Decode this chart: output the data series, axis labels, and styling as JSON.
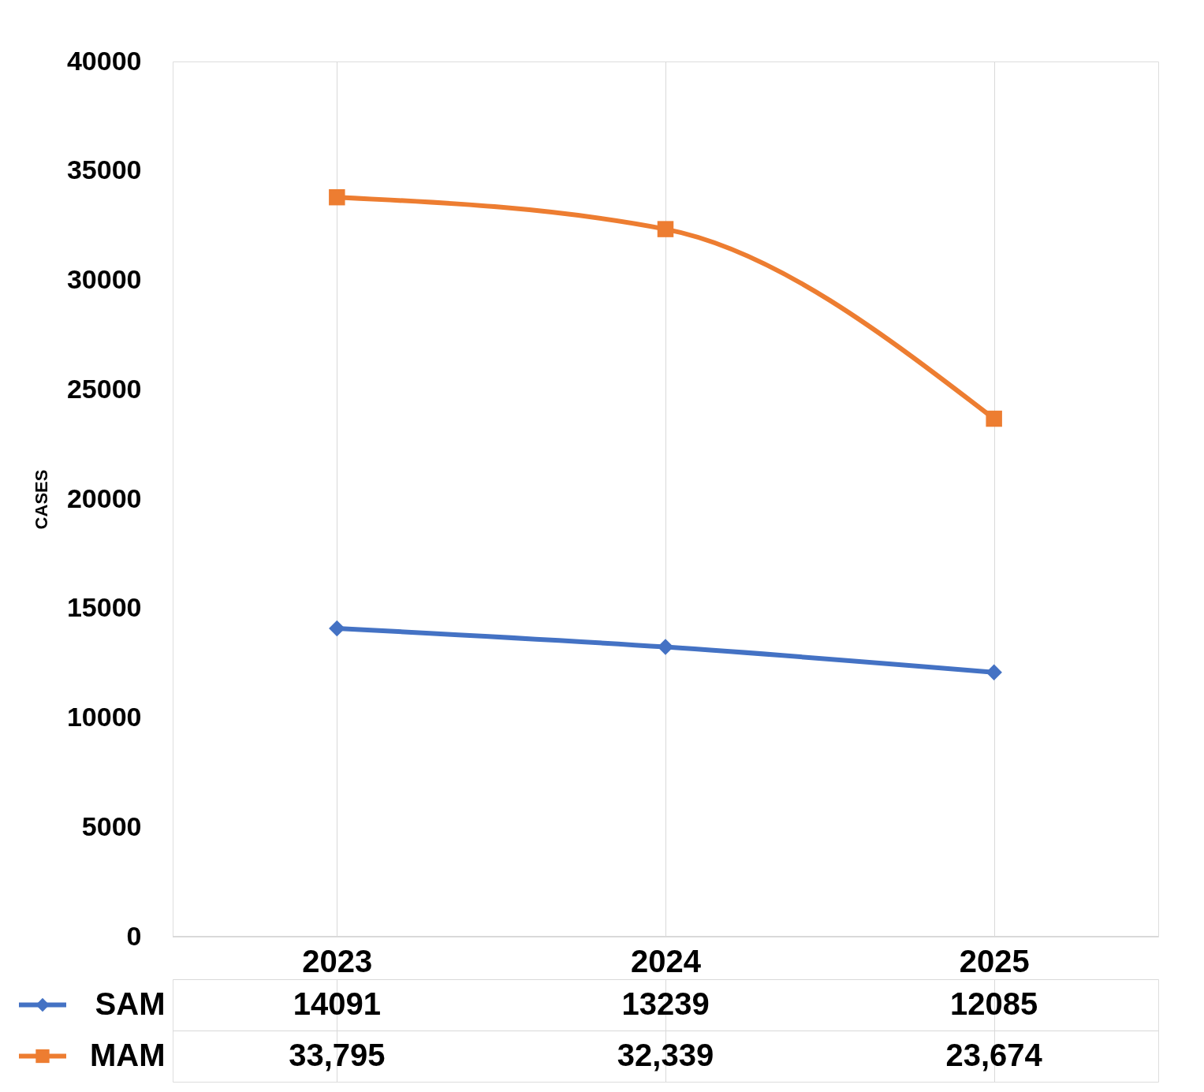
{
  "chart_data": {
    "type": "line",
    "ylabel": "CASES",
    "categories": [
      "2023",
      "2024",
      "2025"
    ],
    "series": [
      {
        "name": "SAM",
        "color": "#4472c4",
        "marker": "diamond",
        "values": [
          14091,
          13239,
          12085
        ],
        "value_labels": [
          "14091",
          "13239",
          "12085"
        ]
      },
      {
        "name": "MAM",
        "color": "#ed7d31",
        "marker": "square",
        "values": [
          33795,
          32339,
          23674
        ],
        "value_labels": [
          "33,795",
          "32,339",
          "23,674"
        ]
      }
    ],
    "ylim": [
      0,
      40000
    ],
    "yticks": [
      0,
      5000,
      10000,
      15000,
      20000,
      25000,
      30000,
      35000,
      40000
    ],
    "grid": "x",
    "legend": "bottom"
  }
}
